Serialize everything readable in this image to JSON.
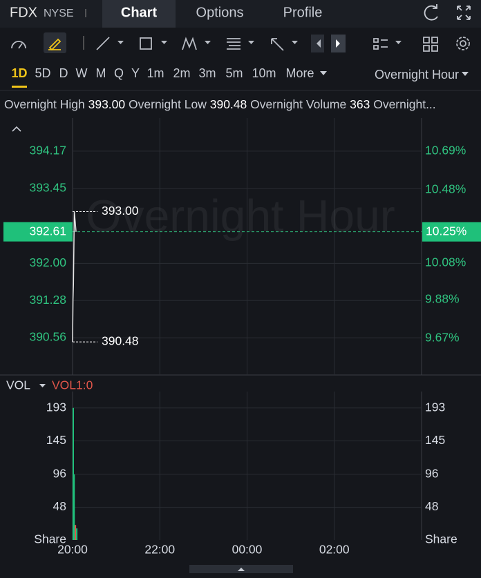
{
  "header": {
    "symbol": "FDX",
    "exchange": "NYSE",
    "tabs": [
      "Chart",
      "Options",
      "Profile"
    ]
  },
  "periods": [
    "1D",
    "5D",
    "D",
    "W",
    "M",
    "Q",
    "Y",
    "1m",
    "2m",
    "3m",
    "5m",
    "10m",
    "More"
  ],
  "session": "Overnight Hour",
  "stats": [
    {
      "label": "Overnight High",
      "value": "393.00"
    },
    {
      "label": "Overnight Low",
      "value": "390.48"
    },
    {
      "label": "Overnight Volume",
      "value": "363"
    },
    {
      "label": "Overnight..."
    }
  ],
  "chart_data": [
    {
      "type": "line",
      "watermark": "Overnight Hour",
      "x": [
        20.0,
        20.01,
        20.02,
        20.04,
        20.08
      ],
      "values": [
        390.48,
        391.3,
        391.6,
        393.0,
        392.61
      ],
      "color": "#e8e8e8",
      "xlim": [
        20,
        28
      ],
      "ylim": [
        389.84,
        394.81
      ],
      "yticks": [
        394.17,
        393.45,
        {
          "value": 392,
          "label": "392.00"
        },
        391.28,
        390.56
      ],
      "y2lim": [
        9.47,
        10.87
      ],
      "y2ticks": [
        {
          "value": 10.69,
          "label": "10.69%"
        },
        {
          "value": 10.48,
          "label": "10.48%"
        },
        {
          "value": 10.08,
          "label": "10.08%"
        },
        {
          "value": 9.88,
          "label": "9.88%"
        },
        {
          "value": 9.67,
          "label": "9.67%"
        }
      ],
      "high": {
        "value": 393,
        "label": "393.00"
      },
      "low": {
        "value": 390.48,
        "label": "390.48"
      },
      "last": {
        "value": 392.61,
        "label": "392.61",
        "pct": 10.25,
        "pct_label": "10.25%"
      },
      "grid": true
    },
    {
      "type": "bar",
      "title": "VOL",
      "subtitle": "VOL1:0",
      "x": [
        20.0,
        20.02,
        20.05,
        20.08
      ],
      "values": [
        193,
        96,
        22,
        17
      ],
      "colors": [
        "#1fc07a",
        "#1fc07a",
        "#e0564a",
        "#1fc07a"
      ],
      "xlim": [
        20,
        28
      ],
      "ylim": [
        0,
        217
      ],
      "yticks": [
        193,
        145,
        96,
        48,
        {
          "value": 0,
          "label": "Share"
        }
      ],
      "xticks": [
        {
          "value": 20,
          "label": "20:00"
        },
        {
          "value": 22,
          "label": "22:00"
        },
        {
          "value": 24,
          "label": "00:00"
        },
        {
          "value": 26,
          "label": "02:00"
        }
      ],
      "grid": true
    }
  ]
}
